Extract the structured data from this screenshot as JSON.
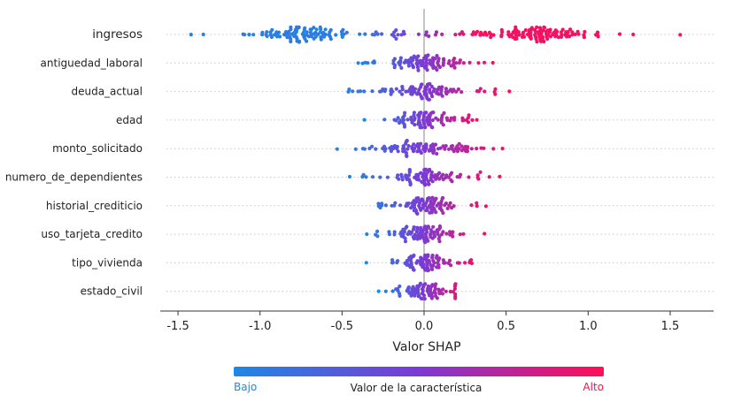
{
  "chart_data": {
    "type": "scatter",
    "subtype": "shap-beeswarm",
    "xlabel": "Valor SHAP",
    "xlim": [
      -1.6,
      1.8
    ],
    "xticks": [
      -1.5,
      -1.0,
      -0.5,
      0.0,
      0.5,
      1.0,
      1.5
    ],
    "xtick_labels": [
      "-1.5",
      "-1.0",
      "-0.5",
      "0.0",
      "0.5",
      "1.0",
      "1.5"
    ],
    "grid": false,
    "features": [
      {
        "name": "ingresos",
        "min": -1.42,
        "max": 1.56,
        "spread": 0.55,
        "count": 230
      },
      {
        "name": "antiguedad_laboral",
        "min": -0.4,
        "max": 0.42,
        "spread": 0.12,
        "count": 90
      },
      {
        "name": "deuda_actual",
        "min": -0.46,
        "max": 0.52,
        "spread": 0.12,
        "count": 90
      },
      {
        "name": "edad",
        "min": -0.36,
        "max": 0.32,
        "spread": 0.1,
        "count": 85
      },
      {
        "name": "monto_solicitado",
        "min": -0.53,
        "max": 0.48,
        "spread": 0.13,
        "count": 90
      },
      {
        "name": "numero_de_dependientes",
        "min": -0.45,
        "max": 0.46,
        "spread": 0.1,
        "count": 85
      },
      {
        "name": "historial_crediticio",
        "min": -0.28,
        "max": 0.38,
        "spread": 0.09,
        "count": 85
      },
      {
        "name": "uso_tarjeta_credito",
        "min": -0.35,
        "max": 0.37,
        "spread": 0.1,
        "count": 85
      },
      {
        "name": "tipo_vivienda",
        "min": -0.35,
        "max": 0.29,
        "spread": 0.08,
        "count": 80
      },
      {
        "name": "estado_civil",
        "min": -0.28,
        "max": 0.19,
        "spread": 0.07,
        "count": 75
      }
    ],
    "colorbar": {
      "label": "Valor de la característica",
      "low_label": "Bajo",
      "high_label": "Alto",
      "low_color": "#1e88e5",
      "high_color": "#ff0d57"
    }
  }
}
